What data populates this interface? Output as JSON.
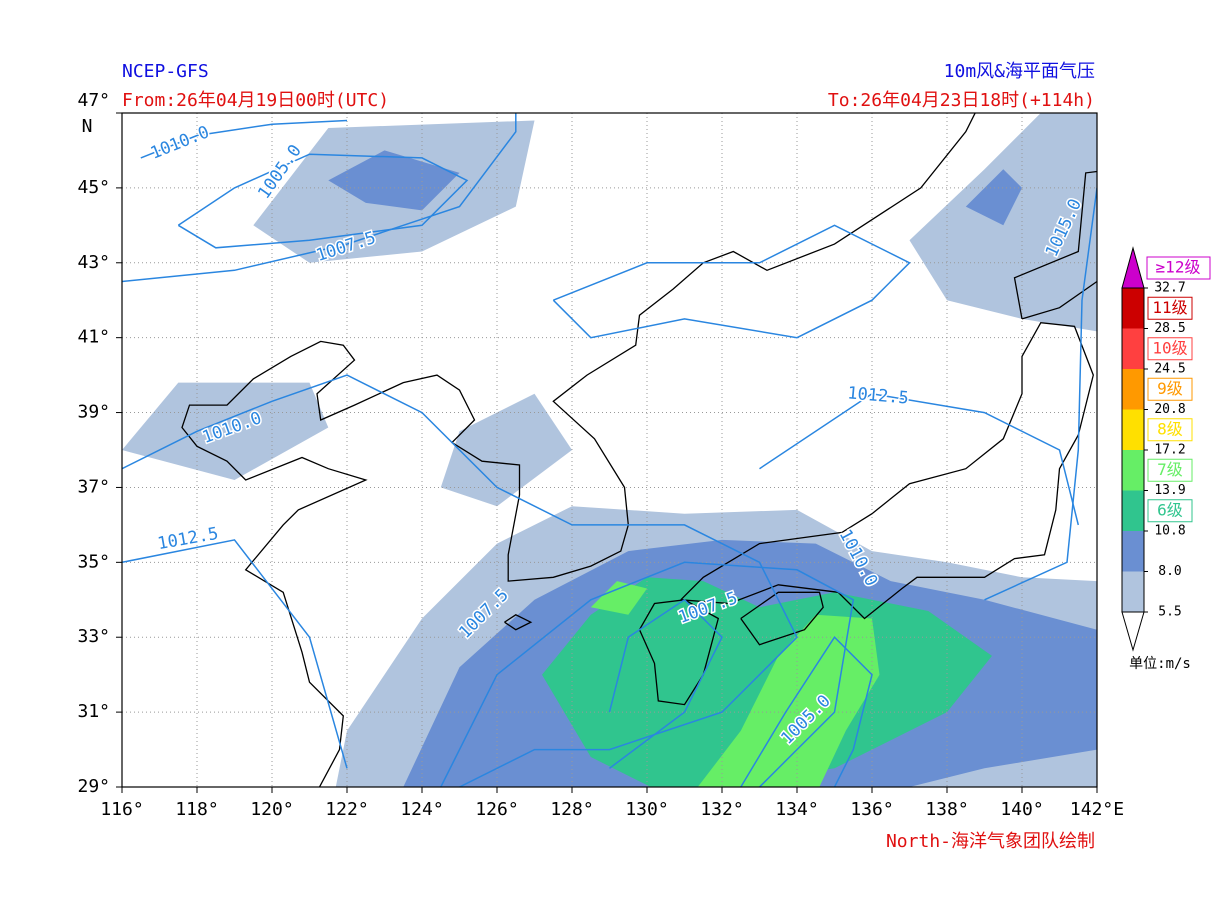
{
  "header": {
    "source": "NCEP-GFS",
    "from": "From:26年04月19日00时(UTC)",
    "product": "10m风&海平面气压",
    "to": "To:26年04月23日18时(+114h)"
  },
  "map": {
    "lon_range": [
      116,
      142
    ],
    "lat_range": [
      29,
      47
    ],
    "lon_ticks": [
      {
        "value": 116,
        "label": "116°"
      },
      {
        "value": 118,
        "label": "118°"
      },
      {
        "value": 120,
        "label": "120°"
      },
      {
        "value": 122,
        "label": "122°"
      },
      {
        "value": 124,
        "label": "124°"
      },
      {
        "value": 126,
        "label": "126°"
      },
      {
        "value": 128,
        "label": "128°"
      },
      {
        "value": 130,
        "label": "130°"
      },
      {
        "value": 132,
        "label": "132°"
      },
      {
        "value": 134,
        "label": "134°"
      },
      {
        "value": 136,
        "label": "136°"
      },
      {
        "value": 138,
        "label": "138°"
      },
      {
        "value": 140,
        "label": "140°"
      },
      {
        "value": 142,
        "label": "142°E"
      }
    ],
    "lat_ticks": [
      {
        "value": 47,
        "label": "47°"
      },
      {
        "value": 45,
        "label": "45°"
      },
      {
        "value": 43,
        "label": "43°"
      },
      {
        "value": 41,
        "label": "41°"
      },
      {
        "value": 39,
        "label": "39°"
      },
      {
        "value": 37,
        "label": "37°"
      },
      {
        "value": 35,
        "label": "35°"
      },
      {
        "value": 33,
        "label": "33°"
      },
      {
        "value": 31,
        "label": "31°"
      },
      {
        "value": 29,
        "label": "29°"
      }
    ],
    "lat_unit": "N",
    "isobar_labels": [
      "1010.0",
      "1005.0",
      "1007.5",
      "1010.0",
      "1012.5",
      "1012.5",
      "1015.0",
      "1010.0",
      "1007.5",
      "1007.5",
      "1005.0"
    ]
  },
  "legend": {
    "levels": [
      5.5,
      {
        "value": 8,
        "label": "8.0"
      },
      10.8,
      13.9,
      17.2,
      20.8,
      24.5,
      28.5,
      32.7
    ],
    "colors": [
      "#b0c4de",
      "#6a8fd2",
      "#30c58e",
      "#66ee66",
      "#ffe000",
      "#ff9900",
      "#ff4040",
      "#cc0000"
    ],
    "grades": [
      "6级",
      "7级",
      "8级",
      "9级",
      "10级",
      "11级"
    ],
    "top": {
      "label": "≥12级",
      "color": "#cc00cc"
    },
    "unit": "单位:m/s"
  },
  "credit": "North-海洋气象团队绘制"
}
